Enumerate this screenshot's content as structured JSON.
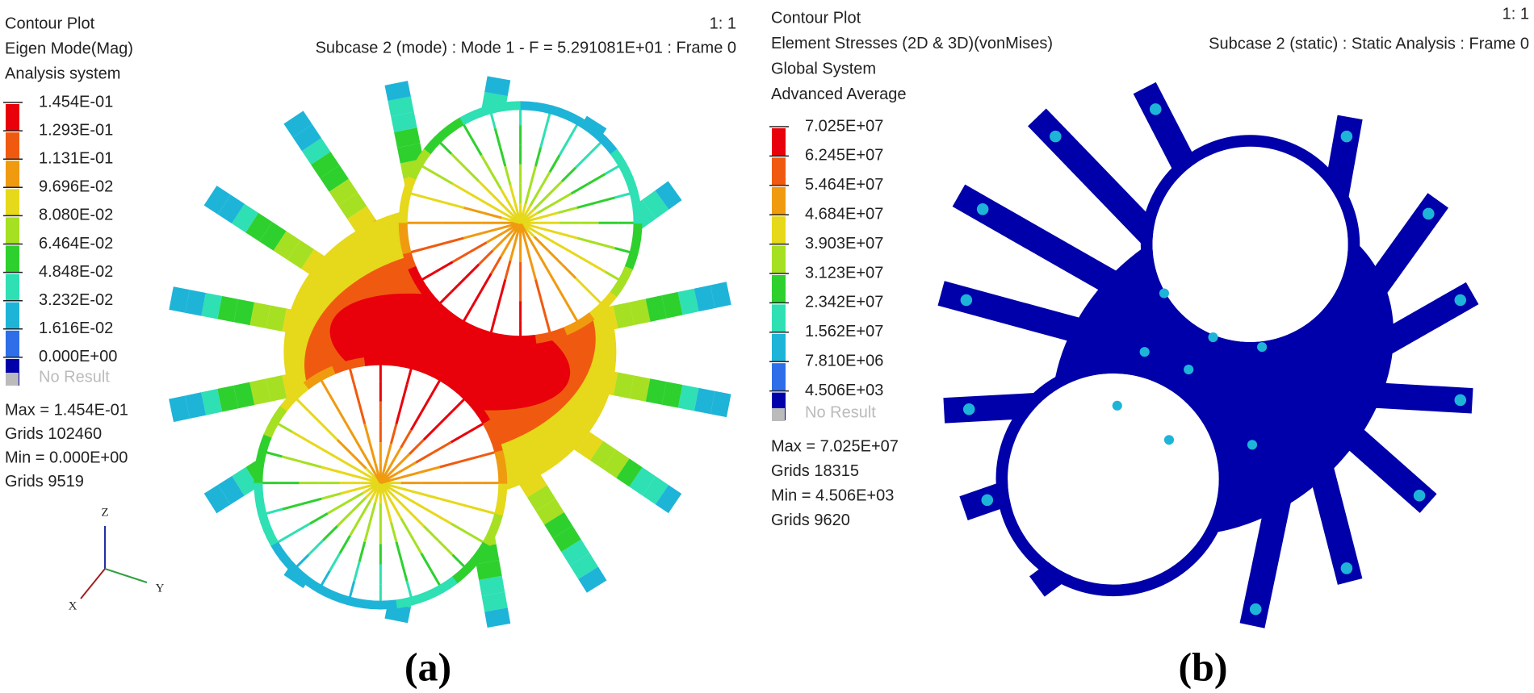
{
  "panels": [
    {
      "header": [
        "Contour Plot",
        "Eigen Mode(Mag)",
        "Analysis system"
      ],
      "scale": "1: 1",
      "subcase": "Subcase 2 (mode) : Mode 1 - F = 5.291081E+01 : Frame 0",
      "legend": {
        "labels": [
          "1.454E-01",
          "1.293E-01",
          "1.131E-01",
          "9.696E-02",
          "8.080E-02",
          "6.464E-02",
          "4.848E-02",
          "3.232E-02",
          "1.616E-02",
          "0.000E+00"
        ],
        "colors": [
          "#e8000b",
          "#f05a10",
          "#f09a10",
          "#e6d81a",
          "#a6e022",
          "#2ed02e",
          "#2ee0b4",
          "#1eb4d8",
          "#2e6ee8",
          "#0000aa"
        ],
        "no_result": "No Result"
      },
      "stats": [
        "Max = 1.454E-01",
        "Grids 102460",
        "Min = 0.000E+00",
        "Grids 9519"
      ],
      "axes": [
        "Z",
        "Y",
        "X"
      ],
      "label": "(a)"
    },
    {
      "header": [
        "Contour Plot",
        "Element Stresses (2D & 3D)(vonMises)",
        "Global System",
        "Advanced Average"
      ],
      "scale": "1: 1",
      "subcase": "Subcase 2 (static) : Static Analysis : Frame 0",
      "legend": {
        "labels": [
          "7.025E+07",
          "6.245E+07",
          "5.464E+07",
          "4.684E+07",
          "3.903E+07",
          "3.123E+07",
          "2.342E+07",
          "1.562E+07",
          "7.810E+06",
          "4.506E+03"
        ],
        "colors": [
          "#e8000b",
          "#f05a10",
          "#f09a10",
          "#e6d81a",
          "#a6e022",
          "#2ed02e",
          "#2ee0b4",
          "#1eb4d8",
          "#2e6ee8",
          "#0000aa"
        ],
        "no_result": "No Result"
      },
      "stats": [
        "Max = 7.025E+07",
        "Grids 18315",
        "Min = 4.506E+03",
        "Grids 9620"
      ],
      "label": "(b)"
    }
  ]
}
